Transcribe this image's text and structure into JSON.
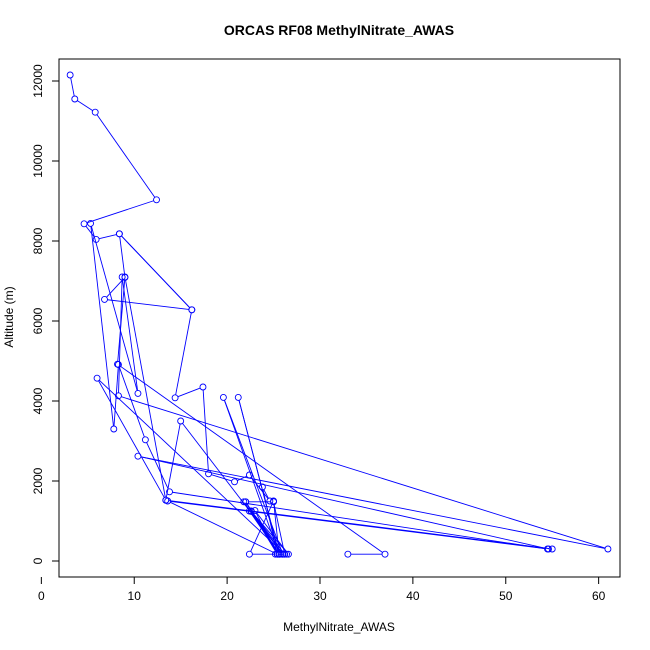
{
  "chart_data": {
    "type": "line",
    "title": "ORCAS RF08 MethylNitrate_AWAS",
    "xlabel": "MethylNitrate_AWAS",
    "ylabel": "Altitude (m)",
    "xlim": [
      1.9,
      62.3
    ],
    "ylim": [
      -400,
      12550
    ],
    "xticks": [
      0,
      10,
      20,
      30,
      40,
      50,
      60
    ],
    "yticks": [
      0,
      2000,
      4000,
      6000,
      8000,
      10000,
      12000
    ],
    "grid": false,
    "legend": "none",
    "series_color": "#0000ff",
    "points": [
      [
        3.1,
        12150
      ],
      [
        3.6,
        11550
      ],
      [
        5.8,
        11220
      ],
      [
        12.4,
        9030
      ],
      [
        4.6,
        8430
      ],
      [
        5.9,
        8040
      ],
      [
        8.4,
        8180
      ],
      [
        9.0,
        7090
      ],
      [
        6.8,
        6540
      ],
      [
        16.2,
        6280
      ],
      [
        8.4,
        8180
      ],
      [
        16.2,
        6280
      ],
      [
        14.4,
        4080
      ],
      [
        17.4,
        4350
      ],
      [
        18.0,
        2180
      ],
      [
        20.8,
        1980
      ],
      [
        22.4,
        2150
      ],
      [
        24.6,
        1500
      ],
      [
        23.8,
        1850
      ],
      [
        25.4,
        170
      ],
      [
        22.4,
        170
      ],
      [
        25.0,
        1500
      ],
      [
        25.6,
        170
      ],
      [
        21.2,
        4090
      ],
      [
        25.6,
        170
      ],
      [
        19.6,
        4090
      ],
      [
        26.0,
        170
      ],
      [
        15.0,
        3500
      ],
      [
        13.4,
        1520
      ],
      [
        55.0,
        300
      ],
      [
        54.5,
        300
      ],
      [
        13.8,
        1730
      ],
      [
        11.2,
        3030
      ],
      [
        8.3,
        4910
      ],
      [
        7.8,
        3300
      ],
      [
        5.3,
        8440
      ],
      [
        10.4,
        4190
      ],
      [
        8.7,
        7100
      ],
      [
        8.3,
        4130
      ],
      [
        61.0,
        300
      ],
      [
        10.4,
        2620
      ],
      [
        54.6,
        300
      ],
      [
        13.6,
        1500
      ],
      [
        25.4,
        170
      ],
      [
        22.0,
        1480
      ],
      [
        25.0,
        1480
      ],
      [
        26.2,
        170
      ],
      [
        22.6,
        1250
      ],
      [
        25.6,
        170
      ],
      [
        22.0,
        1480
      ],
      [
        25.6,
        170
      ],
      [
        21.8,
        1480
      ],
      [
        25.6,
        170
      ],
      [
        22.4,
        1250
      ],
      [
        26.0,
        170
      ],
      [
        22.6,
        1240
      ],
      [
        26.6,
        170
      ],
      [
        23.0,
        1260
      ],
      [
        25.4,
        170
      ],
      [
        26.0,
        170
      ],
      [
        25.8,
        170
      ],
      [
        26.4,
        170
      ],
      [
        25.2,
        170
      ],
      [
        26.2,
        170
      ],
      [
        6.0,
        4570
      ],
      [
        13.4,
        1520
      ],
      [
        9.0,
        7100
      ],
      [
        8.2,
        4920
      ],
      [
        37.0,
        170
      ],
      [
        33.0,
        170
      ]
    ]
  }
}
